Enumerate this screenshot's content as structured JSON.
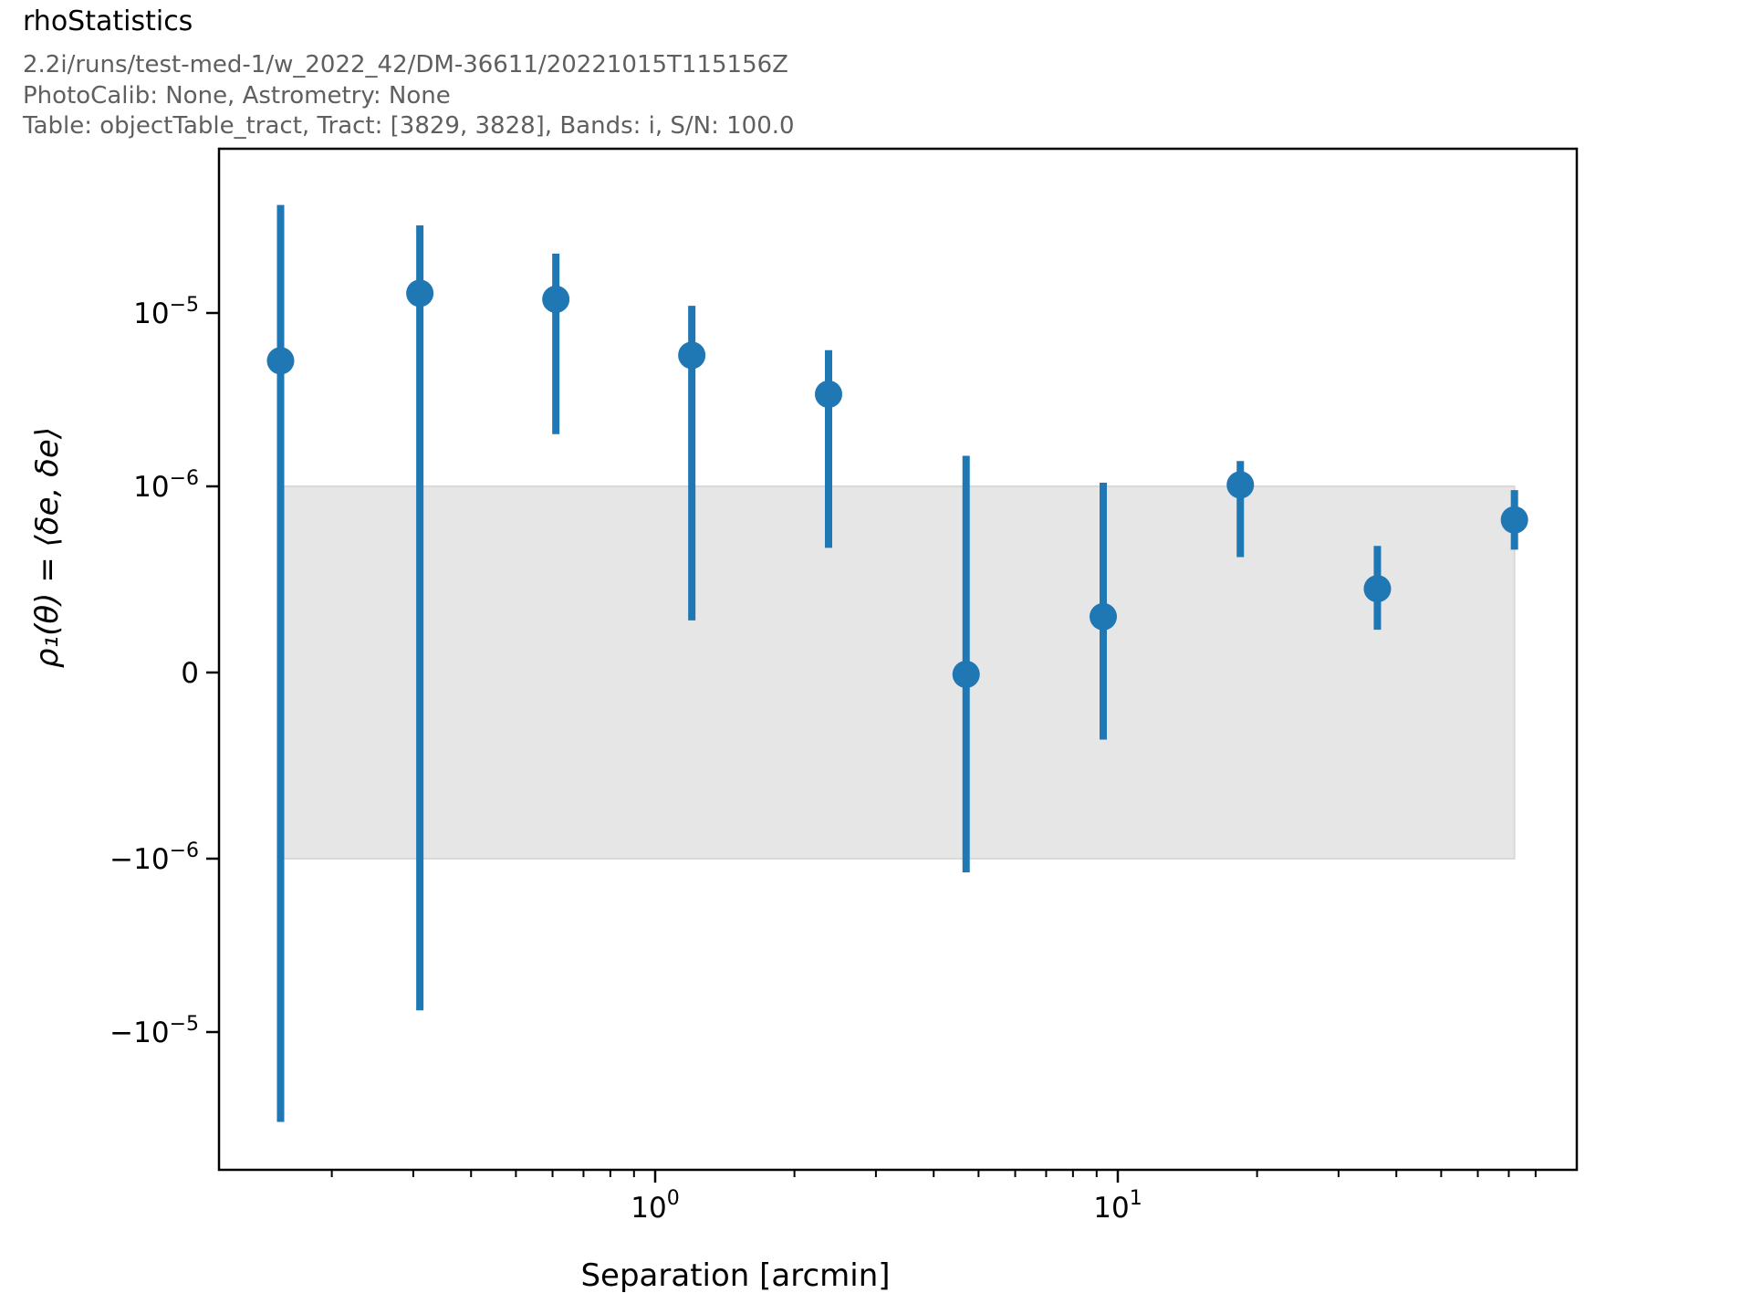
{
  "header": {
    "title": "rhoStatistics",
    "run_info": "2.2i/runs/test-med-1/w_2022_42/DM-36611/20221015T115156Z",
    "calib_info": "PhotoCalib: None, Astrometry: None",
    "table_info": "Table: objectTable_tract, Tract: [3829, 3828], Bands: i, S/N: 100.0"
  },
  "chart_data": {
    "type": "scatter",
    "title": "rhoStatistics",
    "xlabel": "Separation [arcmin]",
    "ylabel": "ρ₁(θ) = ⟨δe, δe⟩",
    "x_scale": "log",
    "y_scale": "symlog",
    "y_linthresh": 1e-06,
    "xlim": [
      0.114,
      88.6
    ],
    "ylim": [
      -6.7e-05,
      8.8e-05
    ],
    "grid": false,
    "legend": null,
    "series_color": "#1f77b4",
    "x": [
      0.155,
      0.31,
      0.61,
      1.2,
      2.37,
      4.7,
      9.3,
      18.4,
      36.4,
      72
    ],
    "y": [
      5.3e-06,
      1.3e-05,
      1.2e-05,
      5.7e-06,
      3.4e-06,
      -1e-08,
      3e-07,
      1.02e-06,
      4.5e-07,
      8.2e-07
    ],
    "y_err_high": [
      4.2e-05,
      3.2e-05,
      2.2e-05,
      1.1e-05,
      6.1e-06,
      1.5e-06,
      1.05e-06,
      1.4e-06,
      6.8e-07,
      9.8e-07
    ],
    "y_err_low": [
      -3.3e-05,
      -7.5e-06,
      2e-06,
      2.8e-07,
      6.7e-07,
      -1.2e-06,
      -3.6e-07,
      6.2e-07,
      2.3e-07,
      6.6e-07
    ],
    "reference_band": {
      "x_min": 0.155,
      "x_max": 72,
      "y_min": -1e-06,
      "y_max": 1e-06,
      "fill_color": "#e6e6e6",
      "edge_color": "#d9d9d9"
    },
    "x_ticks": {
      "major": [
        {
          "v": 1,
          "main": "10",
          "sup": "0"
        },
        {
          "v": 10,
          "main": "10",
          "sup": "1"
        }
      ],
      "minor": [
        0.2,
        0.3,
        0.4,
        0.5,
        0.6,
        0.7,
        0.8,
        0.9,
        2,
        3,
        4,
        5,
        6,
        7,
        8,
        9,
        20,
        30,
        40,
        50,
        60,
        70,
        80
      ]
    },
    "y_ticks": [
      {
        "v": 1e-05,
        "main": "10",
        "sup": "−5"
      },
      {
        "v": 1e-06,
        "main": "10",
        "sup": "−6"
      },
      {
        "v": 0,
        "main": "0",
        "sup": ""
      },
      {
        "v": -1e-06,
        "main": "−10",
        "sup": "−6"
      },
      {
        "v": -1e-05,
        "main": "−10",
        "sup": "−5"
      }
    ]
  }
}
